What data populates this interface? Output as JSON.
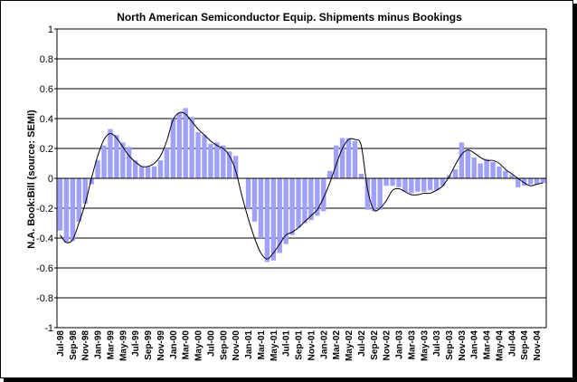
{
  "chart_data": {
    "type": "bar",
    "title": "North American Semiconductor Equip. Shipments minus Bookings",
    "ylabel": "N.A. Book:Bill  (source: SEMI)",
    "xlabel": "",
    "ylim": [
      -1,
      1
    ],
    "yticks": [
      "1",
      "0.8",
      "0.6",
      "0.4",
      "0.2",
      "0",
      "-0.2",
      "-0.4",
      "-0.6",
      "-0.8",
      "-1"
    ],
    "grid": true,
    "categories": [
      "Jul-98",
      "Aug-98",
      "Sep-98",
      "Oct-98",
      "Nov-98",
      "Dec-98",
      "Jan-99",
      "Feb-99",
      "Mar-99",
      "Apr-99",
      "May-99",
      "Jun-99",
      "Jul-99",
      "Aug-99",
      "Sep-99",
      "Oct-99",
      "Nov-99",
      "Dec-99",
      "Jan-00",
      "Feb-00",
      "Mar-00",
      "Apr-00",
      "May-00",
      "Jun-00",
      "Jul-00",
      "Aug-00",
      "Sep-00",
      "Oct-00",
      "Nov-00",
      "Dec-00",
      "Jan-01",
      "Feb-01",
      "Mar-01",
      "Apr-01",
      "May-01",
      "Jun-01",
      "Jul-01",
      "Aug-01",
      "Sep-01",
      "Oct-01",
      "Nov-01",
      "Dec-01",
      "Jan-02",
      "Feb-02",
      "Mar-02",
      "Apr-02",
      "May-02",
      "Jun-02",
      "Jul-02",
      "Aug-02",
      "Sep-02",
      "Oct-02",
      "Nov-02",
      "Dec-02",
      "Jan-03",
      "Feb-03",
      "Mar-03",
      "Apr-03",
      "May-03",
      "Jun-03",
      "Jul-03",
      "Aug-03",
      "Sep-03",
      "Oct-03",
      "Nov-03",
      "Dec-03",
      "Jan-04",
      "Feb-04",
      "Mar-04",
      "Apr-04",
      "May-04",
      "Jun-04",
      "Jul-04",
      "Aug-04",
      "Sep-04",
      "Oct-04",
      "Nov-04",
      "Dec-04"
    ],
    "xtick_labels": [
      "Jul-98",
      "Sep-98",
      "Nov-98",
      "Jan-99",
      "Mar-99",
      "May-99",
      "Jul-99",
      "Sep-99",
      "Nov-99",
      "Jan-00",
      "Mar-00",
      "May-00",
      "Jul-00",
      "Sep-00",
      "Nov-00",
      "Jan-01",
      "Mar-01",
      "May-01",
      "Jul-01",
      "Sep-01",
      "Nov-01",
      "Jan-02",
      "Mar-02",
      "May-02",
      "Jul-02",
      "Sep-02",
      "Nov-02",
      "Jan-03",
      "Mar-03",
      "May-03",
      "Jul-03",
      "Sep-03",
      "Nov-03",
      "Jan-04",
      "Mar-04",
      "May-04",
      "Jul-04",
      "Sep-04",
      "Nov-04"
    ],
    "series": [
      {
        "type": "bar",
        "values": [
          -0.35,
          -0.43,
          -0.42,
          -0.29,
          -0.17,
          -0.04,
          0.12,
          0.22,
          0.33,
          0.29,
          0.24,
          0.21,
          0.12,
          0.08,
          0.08,
          0.08,
          0.12,
          0.2,
          0.4,
          0.44,
          0.47,
          0.41,
          0.31,
          0.29,
          0.23,
          0.24,
          0.22,
          0.18,
          0.15,
          0.0,
          -0.2,
          -0.29,
          -0.4,
          -0.56,
          -0.55,
          -0.5,
          -0.44,
          -0.38,
          -0.33,
          -0.3,
          -0.28,
          -0.25,
          -0.22,
          0.05,
          0.22,
          0.27,
          0.27,
          0.25,
          0.03,
          -0.21,
          -0.22,
          -0.21,
          -0.05,
          -0.05,
          -0.06,
          -0.09,
          -0.1,
          -0.09,
          -0.09,
          -0.08,
          -0.08,
          -0.05,
          0.02,
          0.06,
          0.24,
          0.19,
          0.14,
          0.1,
          0.13,
          0.11,
          0.08,
          0.05,
          0.02,
          -0.06,
          -0.05,
          -0.04,
          -0.04,
          -0.03
        ]
      },
      {
        "type": "line",
        "values": [
          -0.38,
          -0.43,
          -0.41,
          -0.3,
          -0.17,
          0.0,
          0.15,
          0.26,
          0.3,
          0.27,
          0.21,
          0.15,
          0.11,
          0.08,
          0.08,
          0.1,
          0.15,
          0.25,
          0.39,
          0.44,
          0.43,
          0.38,
          0.33,
          0.29,
          0.25,
          0.22,
          0.2,
          0.15,
          0.05,
          -0.12,
          -0.27,
          -0.4,
          -0.5,
          -0.54,
          -0.5,
          -0.44,
          -0.38,
          -0.36,
          -0.33,
          -0.29,
          -0.25,
          -0.21,
          -0.13,
          -0.03,
          0.09,
          0.2,
          0.26,
          0.26,
          0.22,
          -0.07,
          -0.21,
          -0.2,
          -0.15,
          -0.08,
          -0.07,
          -0.09,
          -0.11,
          -0.11,
          -0.1,
          -0.1,
          -0.08,
          -0.05,
          0.01,
          0.09,
          0.16,
          0.19,
          0.17,
          0.14,
          0.12,
          0.12,
          0.1,
          0.06,
          0.03,
          0.0,
          -0.03,
          -0.05,
          -0.04,
          -0.03
        ]
      }
    ],
    "colors": {
      "bar_fill": "#a0a0ff",
      "line": "#000000",
      "grid": "#000000",
      "background": "#ffffff"
    }
  }
}
